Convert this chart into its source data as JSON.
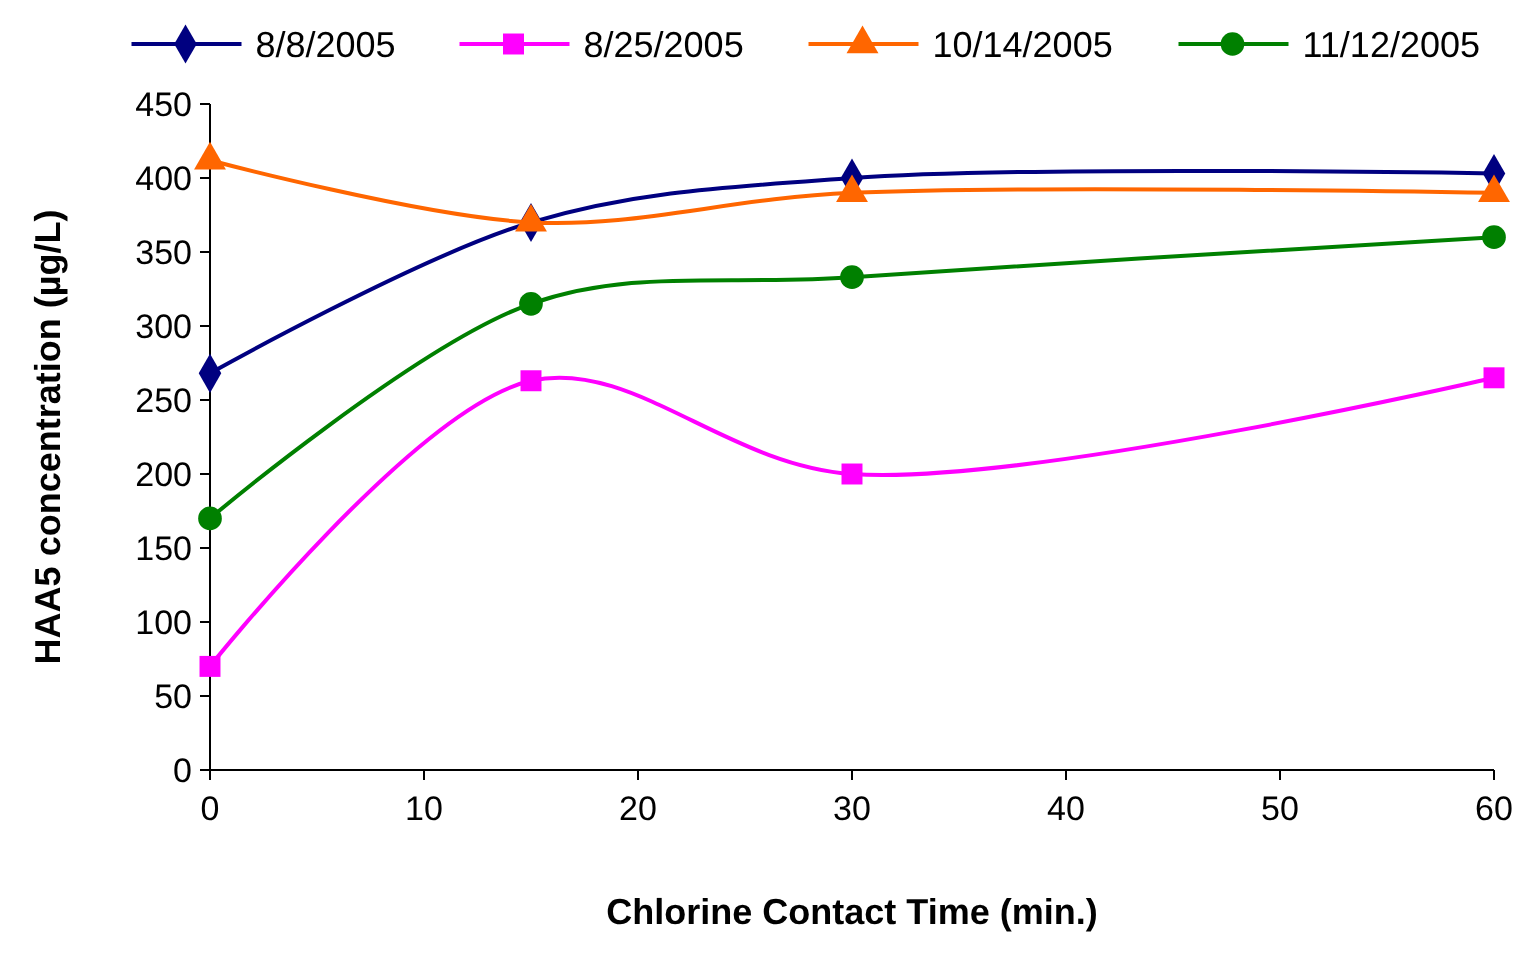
{
  "chart_data": {
    "type": "line",
    "xlabel": "Chlorine Contact Time (min.)",
    "ylabel": "HAA5 concentration (µg/L)",
    "x": [
      0,
      15,
      30,
      60
    ],
    "xlim": [
      0,
      60
    ],
    "xticks": [
      0,
      10,
      20,
      30,
      40,
      50,
      60
    ],
    "ylim": [
      0,
      450
    ],
    "yticks": [
      0,
      50,
      100,
      150,
      200,
      250,
      300,
      350,
      400,
      450
    ],
    "grid": false,
    "legend": "top",
    "series": [
      {
        "name": "8/8/2005",
        "color": "#000080",
        "marker": "diamond",
        "values": [
          268,
          370,
          400,
          403
        ]
      },
      {
        "name": "8/25/2005",
        "color": "#ff00ff",
        "marker": "square",
        "values": [
          70,
          263,
          200,
          265
        ]
      },
      {
        "name": "10/14/2005",
        "color": "#ff6600",
        "marker": "triangle",
        "values": [
          412,
          370,
          390,
          390
        ]
      },
      {
        "name": "11/12/2005",
        "color": "#008000",
        "marker": "circle",
        "values": [
          170,
          315,
          333,
          360
        ]
      }
    ]
  }
}
